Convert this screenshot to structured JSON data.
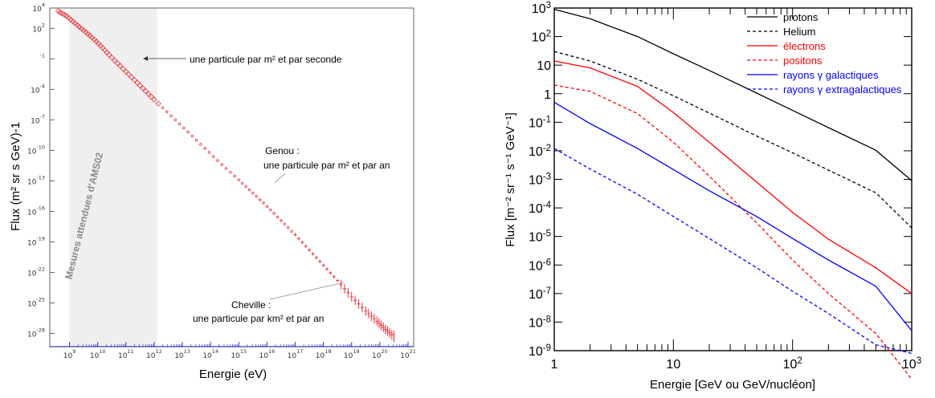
{
  "chart_data": [
    {
      "type": "scatter",
      "title": "",
      "xlabel": "Energie   (eV)",
      "ylabel": "Flux   (m² sr s GeV)-1",
      "xscale": "log",
      "yscale": "log",
      "xlim_exp": [
        8.3,
        21.2
      ],
      "ylim_exp": [
        -29.3,
        4
      ],
      "x_ticks": [
        "10^9",
        "10^10",
        "10^11",
        "10^12",
        "10^13",
        "10^14",
        "10^15",
        "10^16",
        "10^17",
        "10^18",
        "10^19",
        "10^20",
        "10^21"
      ],
      "y_ticks": [
        "10^4",
        "10^2",
        "10^-1",
        "10^-4",
        "10^-7",
        "10^-10",
        "10^-13",
        "10^-16",
        "10^-19",
        "10^-22",
        "10^-25",
        "10^-28"
      ],
      "y_tick_values": [
        4,
        2,
        -1,
        -4,
        -7,
        -10,
        -13,
        -16,
        -19,
        -22,
        -25,
        -28
      ],
      "x_tick_labels": [
        {
          "b": "10",
          "e": "9"
        },
        {
          "b": "10",
          "e": "10"
        },
        {
          "b": "10",
          "e": "11"
        },
        {
          "b": "10",
          "e": "12"
        },
        {
          "b": "10",
          "e": "13"
        },
        {
          "b": "10",
          "e": "14"
        },
        {
          "b": "10",
          "e": "15"
        },
        {
          "b": "10",
          "e": "16"
        },
        {
          "b": "10",
          "e": "17"
        },
        {
          "b": "10",
          "e": "18"
        },
        {
          "b": "10",
          "e": "19"
        },
        {
          "b": "10",
          "e": "20"
        },
        {
          "b": "10",
          "e": "21"
        }
      ],
      "y_tick_labels": [
        {
          "b": "10",
          "e": "4"
        },
        {
          "b": "10",
          "e": "2"
        },
        {
          "b": "",
          "e": "-1"
        },
        {
          "b": "10",
          "e": "-4"
        },
        {
          "b": "10",
          "e": "-7"
        },
        {
          "b": "10",
          "e": "-10"
        },
        {
          "b": "10",
          "e": "-13"
        },
        {
          "b": "10",
          "e": "-16"
        },
        {
          "b": "10",
          "e": "-19"
        },
        {
          "b": "10",
          "e": "-22"
        },
        {
          "b": "10",
          "e": "-25"
        },
        {
          "b": "10",
          "e": "-28"
        }
      ],
      "band_label": "Mesures attendues d'AMS02",
      "band_range_exp": [
        9,
        12.1
      ],
      "marker_color": "#e8323c",
      "series": [
        {
          "x_exp": [
            8.6,
            8.9,
            9.2,
            9.5,
            9.8,
            10.1,
            10.4,
            10.8,
            11.2,
            11.6,
            12.0,
            12.6,
            13.2,
            13.8,
            14.4,
            15.0,
            15.5,
            16.0,
            16.5,
            17.0,
            17.5,
            18.0,
            18.5,
            19.0,
            19.5,
            19.9,
            20.2,
            20.5
          ],
          "y_exp": [
            3.7,
            3.2,
            2.5,
            1.8,
            1.1,
            0.3,
            -0.6,
            -1.7,
            -2.8,
            -3.9,
            -5.0,
            -6.6,
            -8.2,
            -9.8,
            -11.4,
            -12.9,
            -14.2,
            -15.5,
            -16.9,
            -18.3,
            -19.8,
            -21.3,
            -22.8,
            -24.4,
            -25.8,
            -26.8,
            -27.6,
            -28.3
          ]
        }
      ],
      "annotations": [
        {
          "text": "une particule par m² et par seconde",
          "x_exp": 11.3,
          "y_exp": -1.0
        },
        {
          "text": "Genou :",
          "x_exp": 15.6,
          "y_exp": -13.5
        },
        {
          "text": "une particule par m² et par an",
          "x_exp": 15.6,
          "y_exp": -13.5
        },
        {
          "text": "Cheville :",
          "x_exp": 18.6,
          "y_exp": -22.5
        },
        {
          "text": "une particule par km² et par an",
          "x_exp": 18.6,
          "y_exp": -22.5
        }
      ]
    },
    {
      "type": "line",
      "title": "",
      "xlabel": "Energie   [GeV ou GeV/nucléon]",
      "ylabel": "Flux   [m⁻² sr⁻¹ s⁻¹ GeV⁻¹]",
      "xscale": "log",
      "yscale": "log",
      "xlim": [
        1,
        1000
      ],
      "ylim": [
        1e-09,
        1000
      ],
      "x_tick_labels": [
        {
          "b": "1",
          "e": ""
        },
        {
          "b": "10",
          "e": ""
        },
        {
          "b": "10",
          "e": "2"
        },
        {
          "b": "10",
          "e": "3"
        }
      ],
      "y_tick_labels": [
        {
          "b": "10",
          "e": "3"
        },
        {
          "b": "10",
          "e": "2"
        },
        {
          "b": "10",
          "e": ""
        },
        {
          "b": "1",
          "e": ""
        },
        {
          "b": "10",
          "e": "-1"
        },
        {
          "b": "10",
          "e": "-2"
        },
        {
          "b": "10",
          "e": "-3"
        },
        {
          "b": "10",
          "e": "-4"
        },
        {
          "b": "10",
          "e": "-5"
        },
        {
          "b": "10",
          "e": "-6"
        },
        {
          "b": "10",
          "e": "-7"
        },
        {
          "b": "10",
          "e": "-8"
        },
        {
          "b": "10",
          "e": "-9"
        }
      ],
      "x": [
        1,
        2,
        5,
        10,
        20,
        50,
        100,
        200,
        500,
        1000
      ],
      "series": [
        {
          "name": "protons",
          "color": "#000000",
          "dash": "solid",
          "values": [
            900,
            420,
            100,
            25,
            6.5,
            1.05,
            0.26,
            0.065,
            0.0105,
            0.0009
          ]
        },
        {
          "name": "Helium",
          "color": "#000000",
          "dash": "dashed",
          "values": [
            30,
            14,
            3.2,
            0.85,
            0.21,
            0.033,
            0.0085,
            0.0021,
            0.00034,
            2e-05
          ]
        },
        {
          "name": "électrons",
          "color": "#ff0000",
          "dash": "solid",
          "values": [
            14,
            8,
            1.8,
            0.22,
            0.02,
            0.0008,
            7e-05,
            8e-06,
            8e-07,
            1e-07
          ]
        },
        {
          "name": "positons",
          "color": "#ff0000",
          "dash": "dashed",
          "values": [
            2,
            1.2,
            0.2,
            0.02,
            0.0013,
            3e-05,
            1.5e-06,
            1e-07,
            4e-09,
            1e-10
          ]
        },
        {
          "name": "rayons γ galactiques",
          "color": "#0000ff",
          "dash": "solid",
          "values": [
            0.5,
            0.09,
            0.012,
            0.0022,
            0.0004,
            5e-05,
            8.5e-06,
            1.5e-06,
            1.8e-07,
            5e-09
          ]
        },
        {
          "name": "rayons γ extragalactiques",
          "color": "#0000ff",
          "dash": "dashed",
          "values": [
            0.012,
            0.0023,
            0.0003,
            5e-05,
            8.5e-06,
            8e-07,
            1.2e-07,
            2e-08,
            1.6e-09,
            8e-10
          ]
        }
      ]
    }
  ]
}
